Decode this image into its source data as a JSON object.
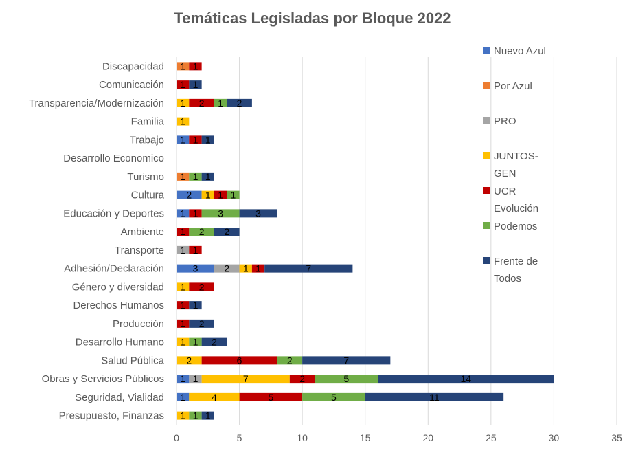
{
  "chart_data": {
    "type": "bar",
    "orientation": "horizontal",
    "stacked": true,
    "title": "Temáticas Legisladas por Bloque 2022",
    "xlim": [
      0,
      35
    ],
    "xticks": [
      0,
      5,
      10,
      15,
      20,
      25,
      30,
      35
    ],
    "grid": true,
    "legend_position": "right",
    "categories": [
      "Presupuesto, Finanzas",
      "Seguridad, Vialidad",
      "Obras y Servicios Públicos",
      "Salud Pública",
      "Desarrollo Humano",
      "Producción",
      "Derechos Humanos",
      "Género y diversidad",
      "Adhesión/Declaración",
      "Transporte",
      "Ambiente",
      "Educación y Deportes",
      "Cultura",
      "Turismo",
      "Desarrollo Economico",
      "Trabajo",
      "Familia",
      "Transparencia/Modernización",
      "Comunicación",
      "Discapacidad"
    ],
    "series": [
      {
        "name": "Nuevo Azul",
        "legend_lines": [
          "Nuevo Azul"
        ],
        "color": "#4472c4",
        "values": [
          0,
          1,
          1,
          0,
          0,
          0,
          0,
          0,
          3,
          0,
          0,
          1,
          2,
          0,
          0,
          1,
          0,
          0,
          0,
          0
        ]
      },
      {
        "name": "Por Azul",
        "legend_lines": [
          "Por Azul"
        ],
        "color": "#ed7d31",
        "values": [
          0,
          0,
          0,
          0,
          0,
          0,
          0,
          0,
          0,
          0,
          0,
          0,
          0,
          1,
          0,
          0,
          0,
          0,
          0,
          1
        ]
      },
      {
        "name": "PRO",
        "legend_lines": [
          "PRO"
        ],
        "color": "#a5a5a5",
        "values": [
          0,
          0,
          1,
          0,
          0,
          0,
          0,
          0,
          2,
          1,
          0,
          0,
          0,
          0,
          0,
          0,
          0,
          0,
          0,
          0
        ]
      },
      {
        "name": "JUNTOS-GEN",
        "legend_lines": [
          "JUNTOS-",
          "GEN"
        ],
        "color": "#ffc000",
        "values": [
          1,
          4,
          7,
          2,
          1,
          0,
          0,
          1,
          1,
          0,
          0,
          0,
          1,
          0,
          0,
          0,
          1,
          1,
          0,
          0
        ]
      },
      {
        "name": "UCR Evolución",
        "legend_lines": [
          "UCR",
          "Evolución"
        ],
        "color": "#c00000",
        "values": [
          0,
          5,
          2,
          6,
          0,
          1,
          1,
          2,
          1,
          1,
          1,
          1,
          1,
          0,
          0,
          1,
          0,
          2,
          1,
          1
        ]
      },
      {
        "name": "Podemos",
        "legend_lines": [
          "Podemos"
        ],
        "color": "#70ad47",
        "values": [
          1,
          5,
          5,
          2,
          1,
          0,
          0,
          0,
          0,
          0,
          2,
          3,
          1,
          1,
          0,
          0,
          0,
          1,
          0,
          0
        ]
      },
      {
        "name": "Frente de Todos",
        "legend_lines": [
          "Frente de",
          "Todos"
        ],
        "color": "#264478",
        "values": [
          1,
          11,
          14,
          7,
          2,
          2,
          1,
          0,
          7,
          0,
          2,
          3,
          0,
          1,
          0,
          1,
          0,
          2,
          1,
          0
        ]
      }
    ]
  }
}
